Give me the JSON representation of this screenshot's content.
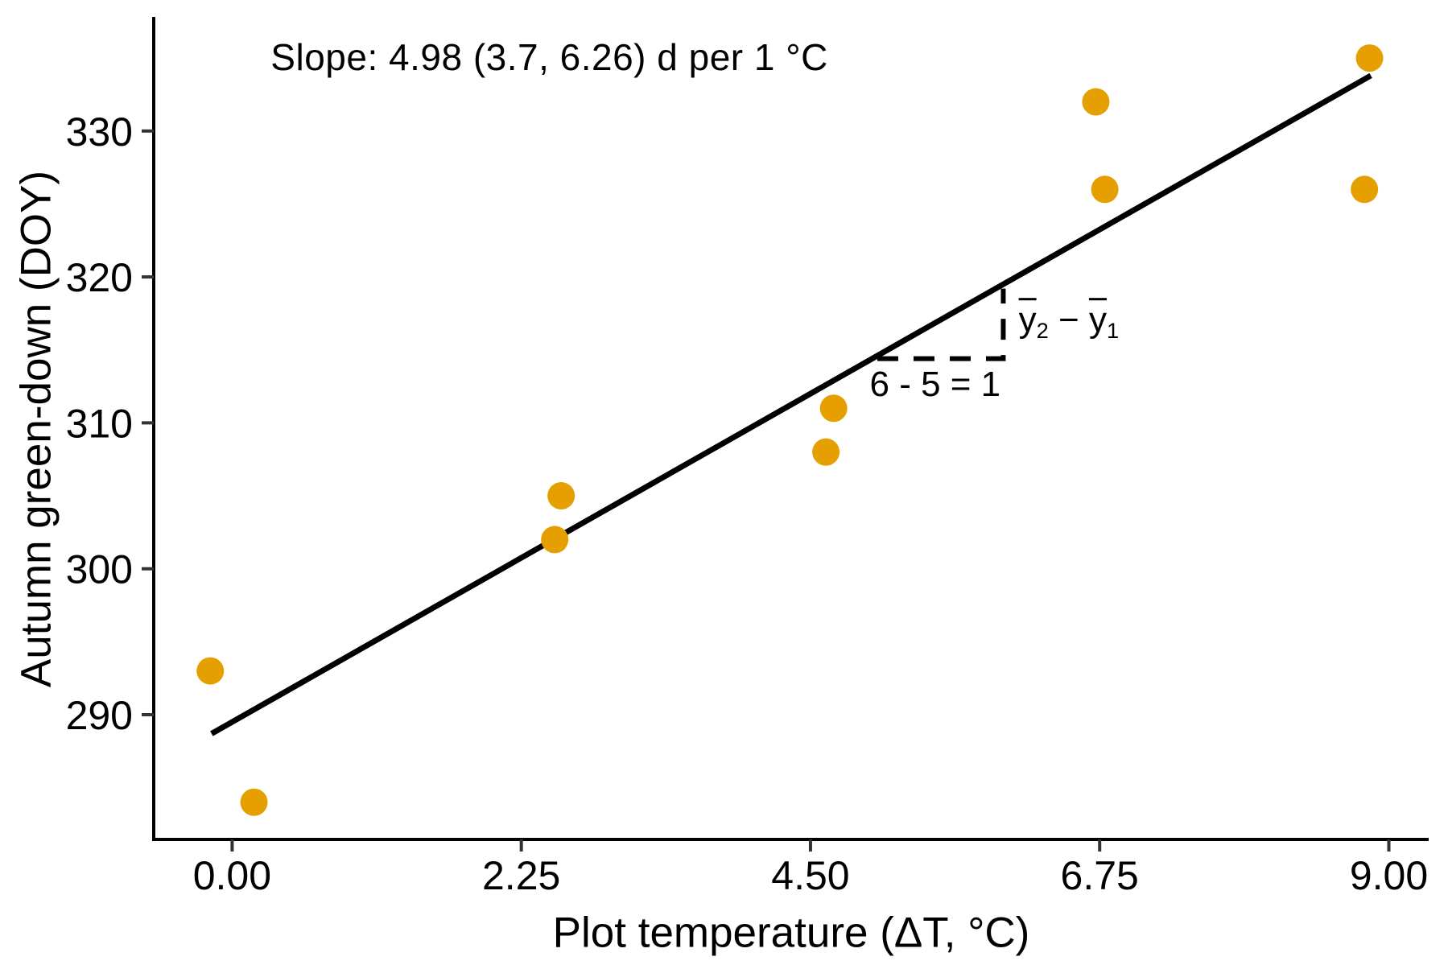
{
  "chart_data": {
    "type": "scatter",
    "xlabel": "Plot temperature (ΔT, °C)",
    "ylabel": "Autumn green-down (DOY)",
    "xlim": [
      -0.61,
      9.31
    ],
    "ylim": [
      281.45,
      337.71
    ],
    "grid": false,
    "legend": false,
    "x_ticks": {
      "values": [
        0,
        2.25,
        4.5,
        6.75,
        9
      ],
      "labels": [
        "0.00",
        "2.25",
        "4.50",
        "6.75",
        "9.00"
      ]
    },
    "y_ticks": {
      "values": [
        290,
        300,
        310,
        320,
        330
      ],
      "labels": [
        "290",
        "300",
        "310",
        "320",
        "330"
      ]
    },
    "points": [
      {
        "x": -0.17,
        "y": 293
      },
      {
        "x": 0.17,
        "y": 284
      },
      {
        "x": 2.51,
        "y": 302
      },
      {
        "x": 2.56,
        "y": 305
      },
      {
        "x": 4.62,
        "y": 308
      },
      {
        "x": 4.68,
        "y": 311
      },
      {
        "x": 6.72,
        "y": 332
      },
      {
        "x": 6.79,
        "y": 326
      },
      {
        "x": 8.81,
        "y": 326
      },
      {
        "x": 8.85,
        "y": 335
      }
    ],
    "point_color": "#E69F00",
    "regression_line": {
      "x1": -0.16,
      "y1": 288.7,
      "x2": 8.86,
      "y2": 333.8,
      "slope": 4.98,
      "color": "#000000"
    },
    "slope_annotation": {
      "text": "Slope: 4.98 (3.7, 6.26) d per 1 °C",
      "x": 0.3,
      "y": 335.0
    },
    "slope_triangle": {
      "x1": 5.02,
      "x2": 6.0,
      "y_base": 314.4,
      "y_top": 319.2,
      "run_label": {
        "text": "6 - 5 = 1",
        "x": 5.47,
        "y": 312.6
      },
      "rise_label": {
        "text": "ȳ₂ − ȳ₁",
        "parts": {
          "ybar_2": "y",
          "sub_2": "2",
          "minus": " − ",
          "ybar_1": "y",
          "sub_1": "1"
        },
        "x": 6.12,
        "y": 316.9
      }
    },
    "axis_color": "#000000",
    "tick_color": "#333333"
  }
}
